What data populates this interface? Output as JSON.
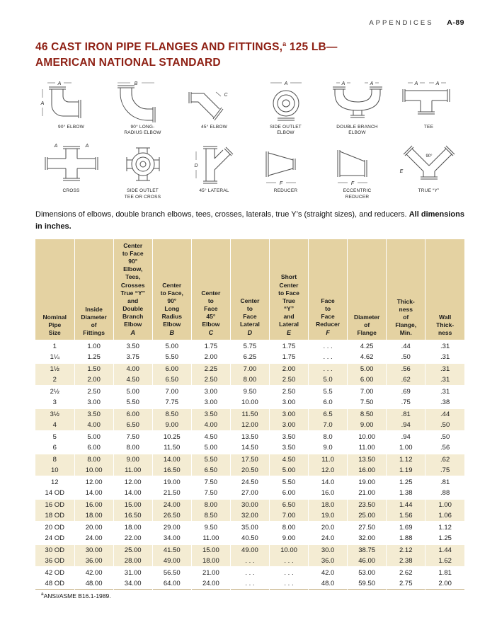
{
  "colors": {
    "title": "#8e1f13",
    "header_bg": "#e4d2a2",
    "alt_bg": "#f4ecd3",
    "rule": "#bfa877"
  },
  "page": {
    "header_label": "APPENDICES",
    "header_page": "A-89"
  },
  "title": {
    "line1_pre": "46 CAST IRON PIPE FLANGES AND FITTINGS,",
    "sup": "a",
    "line1_post": " 125 LB—",
    "line2": "AMERICAN NATIONAL STANDARD"
  },
  "figures": [
    {
      "label": "90° ELBOW",
      "dim": "A"
    },
    {
      "label": "90° LONG-\nRADIUS ELBOW",
      "dim": "B"
    },
    {
      "label": "45° ELBOW",
      "dim": "C"
    },
    {
      "label": "SIDE OUTLET\nELBOW",
      "dim": "A"
    },
    {
      "label": "DOUBLE BRANCH\nELBOW",
      "dim": "A"
    },
    {
      "label": "TEE",
      "dim": "A"
    },
    {
      "label": "CROSS",
      "dim": "A"
    },
    {
      "label": "SIDE OUTLET\nTEE OR CROSS",
      "dim": ""
    },
    {
      "label": "45° LATERAL",
      "dim": "D"
    },
    {
      "label": "REDUCER",
      "dim": "F"
    },
    {
      "label": "ECCENTRIC\nREDUCER",
      "dim": "F"
    },
    {
      "label": "TRUE “Y”",
      "dim": "E",
      "angle": "90°"
    }
  ],
  "caption": {
    "text": "Dimensions of elbows, double branch elbows, tees, crosses, laterals, true Y’s (straight sizes), and reducers. ",
    "bold": "All dimensions in inches."
  },
  "table": {
    "columns": [
      {
        "label": "Nominal\nPipe\nSize",
        "var": ""
      },
      {
        "label": "Inside\nDiameter\nof\nFittings",
        "var": ""
      },
      {
        "label": "Center\nto Face\n90°\nElbow,\nTees,\nCrosses\nTrue “Y”\nand\nDouble\nBranch\nElbow",
        "var": "A"
      },
      {
        "label": "Center\nto Face,\n90°\nLong\nRadius\nElbow",
        "var": "B"
      },
      {
        "label": "Center\nto\nFace\n45°\nElbow",
        "var": "C"
      },
      {
        "label": "Center\nto\nFace\nLateral",
        "var": "D"
      },
      {
        "label": "Short\nCenter\nto Face\nTrue\n“Y”\nand\nLateral",
        "var": "E"
      },
      {
        "label": "Face\nto\nFace\nReducer",
        "var": "F"
      },
      {
        "label": "Diameter\nof\nFlange",
        "var": ""
      },
      {
        "label": "Thick-\nness\nof\nFlange,\nMin.",
        "var": ""
      },
      {
        "label": "Wall\nThick-\nness",
        "var": ""
      }
    ],
    "groups": [
      [
        [
          "1",
          "1.00",
          "3.50",
          "5.00",
          "1.75",
          "5.75",
          "1.75",
          ". . .",
          "4.25",
          ".44",
          ".31"
        ],
        [
          "1¼",
          "1.25",
          "3.75",
          "5.50",
          "2.00",
          "6.25",
          "1.75",
          ". . .",
          "4.62",
          ".50",
          ".31"
        ]
      ],
      [
        [
          "1½",
          "1.50",
          "4.00",
          "6.00",
          "2.25",
          "7.00",
          "2.00",
          ". . .",
          "5.00",
          ".56",
          ".31"
        ],
        [
          "2",
          "2.00",
          "4.50",
          "6.50",
          "2.50",
          "8.00",
          "2.50",
          "5.0",
          "6.00",
          ".62",
          ".31"
        ]
      ],
      [
        [
          "2½",
          "2.50",
          "5.00",
          "7.00",
          "3.00",
          "9.50",
          "2.50",
          "5.5",
          "7.00",
          ".69",
          ".31"
        ],
        [
          "3",
          "3.00",
          "5.50",
          "7.75",
          "3.00",
          "10.00",
          "3.00",
          "6.0",
          "7.50",
          ".75",
          ".38"
        ]
      ],
      [
        [
          "3½",
          "3.50",
          "6.00",
          "8.50",
          "3.50",
          "11.50",
          "3.00",
          "6.5",
          "8.50",
          ".81",
          ".44"
        ],
        [
          "4",
          "4.00",
          "6.50",
          "9.00",
          "4.00",
          "12.00",
          "3.00",
          "7.0",
          "9.00",
          ".94",
          ".50"
        ]
      ],
      [
        [
          "5",
          "5.00",
          "7.50",
          "10.25",
          "4.50",
          "13.50",
          "3.50",
          "8.0",
          "10.00",
          ".94",
          ".50"
        ],
        [
          "6",
          "6.00",
          "8.00",
          "11.50",
          "5.00",
          "14.50",
          "3.50",
          "9.0",
          "11.00",
          "1.00",
          ".56"
        ]
      ],
      [
        [
          "8",
          "8.00",
          "9.00",
          "14.00",
          "5.50",
          "17.50",
          "4.50",
          "11.0",
          "13.50",
          "1.12",
          ".62"
        ],
        [
          "10",
          "10.00",
          "11.00",
          "16.50",
          "6.50",
          "20.50",
          "5.00",
          "12.0",
          "16.00",
          "1.19",
          ".75"
        ]
      ],
      [
        [
          "12",
          "12.00",
          "12.00",
          "19.00",
          "7.50",
          "24.50",
          "5.50",
          "14.0",
          "19.00",
          "1.25",
          ".81"
        ],
        [
          "14 OD",
          "14.00",
          "14.00",
          "21.50",
          "7.50",
          "27.00",
          "6.00",
          "16.0",
          "21.00",
          "1.38",
          ".88"
        ]
      ],
      [
        [
          "16 OD",
          "16.00",
          "15.00",
          "24.00",
          "8.00",
          "30.00",
          "6.50",
          "18.0",
          "23.50",
          "1.44",
          "1.00"
        ],
        [
          "18 OD",
          "18.00",
          "16.50",
          "26.50",
          "8.50",
          "32.00",
          "7.00",
          "19.0",
          "25.00",
          "1.56",
          "1.06"
        ]
      ],
      [
        [
          "20 OD",
          "20.00",
          "18.00",
          "29.00",
          "9.50",
          "35.00",
          "8.00",
          "20.0",
          "27.50",
          "1.69",
          "1.12"
        ],
        [
          "24 OD",
          "24.00",
          "22.00",
          "34.00",
          "11.00",
          "40.50",
          "9.00",
          "24.0",
          "32.00",
          "1.88",
          "1.25"
        ]
      ],
      [
        [
          "30 OD",
          "30.00",
          "25.00",
          "41.50",
          "15.00",
          "49.00",
          "10.00",
          "30.0",
          "38.75",
          "2.12",
          "1.44"
        ],
        [
          "36 OD",
          "36.00",
          "28.00",
          "49.00",
          "18.00",
          ". . .",
          ". . .",
          "36.0",
          "46.00",
          "2.38",
          "1.62"
        ]
      ],
      [
        [
          "42 OD",
          "42.00",
          "31.00",
          "56.50",
          "21.00",
          ". . .",
          ". . .",
          "42.0",
          "53.00",
          "2.62",
          "1.81"
        ],
        [
          "48 OD",
          "48.00",
          "34.00",
          "64.00",
          "24.00",
          ". . .",
          ". . .",
          "48.0",
          "59.50",
          "2.75",
          "2.00"
        ]
      ]
    ]
  },
  "footnote": {
    "sup": "a",
    "text": "ANSI/ASME B16.1-1989."
  }
}
